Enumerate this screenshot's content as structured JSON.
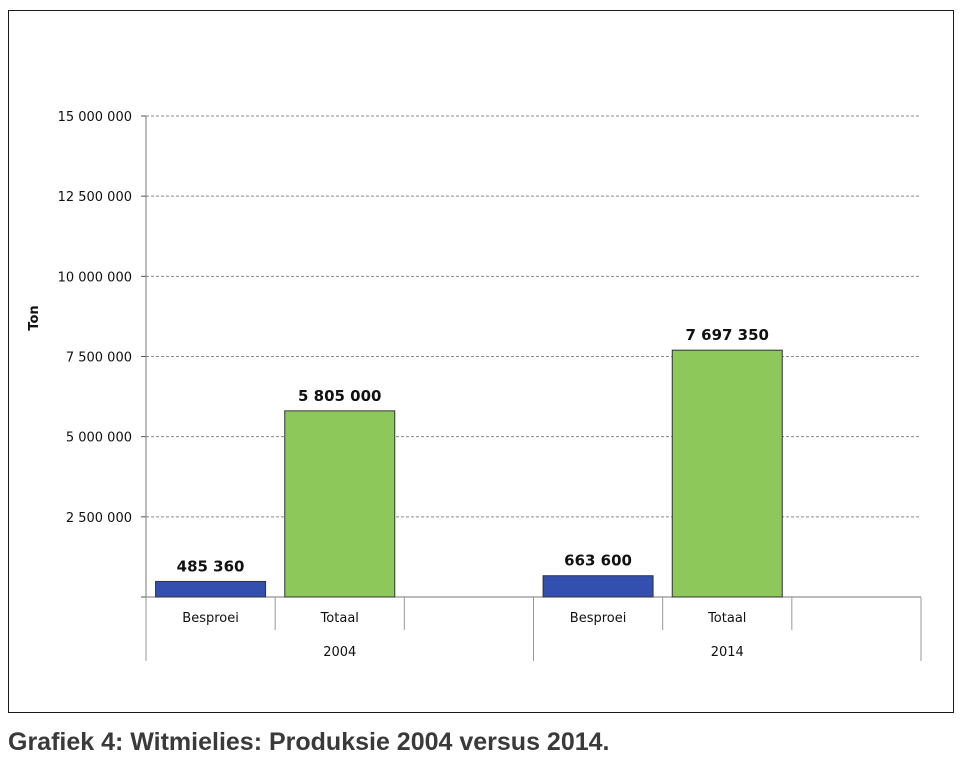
{
  "caption": "Grafiek 4: Witmielies: Produksie 2004 versus 2014.",
  "chart_data": {
    "type": "bar",
    "ylabel": "Ton",
    "ylim": [
      0,
      15000000
    ],
    "yticks": [
      2500000,
      5000000,
      7500000,
      10000000,
      12500000,
      15000000
    ],
    "ytick_labels": [
      "2 500 000",
      "5 000 000",
      "7 500 000",
      "10 000 000",
      "12 500 000",
      "15 000 000"
    ],
    "grid": true,
    "groups": [
      {
        "label": "2004",
        "bars": [
          {
            "category": "Besproei",
            "value": 485360,
            "value_label": "485 360",
            "color": "#3350b0"
          },
          {
            "category": "Totaal",
            "value": 5805000,
            "value_label": "5 805 000",
            "color": "#8dc85a"
          }
        ]
      },
      {
        "label": "2014",
        "bars": [
          {
            "category": "Besproei",
            "value": 663600,
            "value_label": "663 600",
            "color": "#3350b0"
          },
          {
            "category": "Totaal",
            "value": 7697350,
            "value_label": "7 697 350",
            "color": "#8dc85a"
          }
        ]
      }
    ]
  }
}
